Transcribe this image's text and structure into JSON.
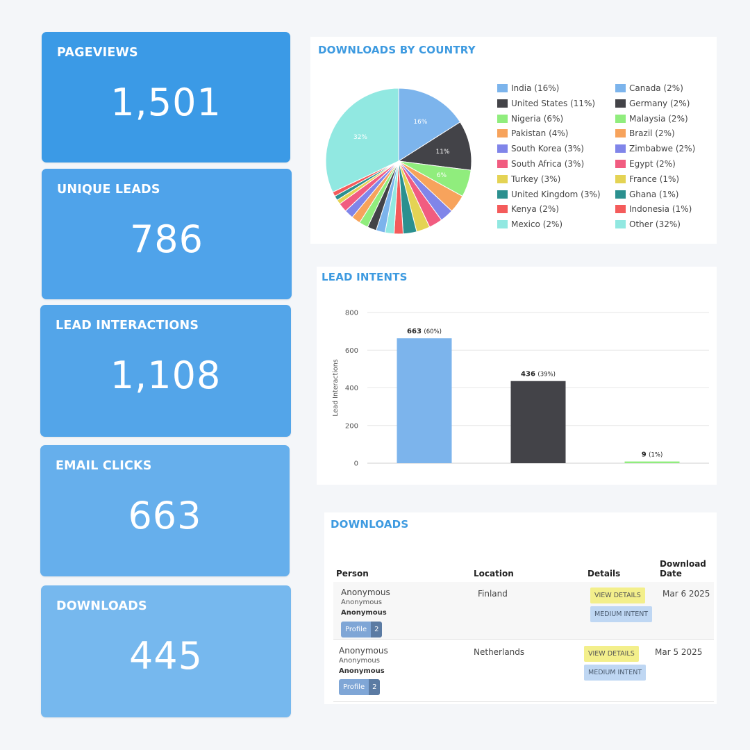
{
  "stats": [
    {
      "title": "PAGEVIEWS",
      "value": "1,501",
      "color": "#3b9ae6"
    },
    {
      "title": "UNIQUE LEADS",
      "value": "786",
      "color": "#4fa3ea"
    },
    {
      "title": "LEAD INTERACTIONS",
      "value": "1,108",
      "color": "#53a5e9"
    },
    {
      "title": "EMAIL CLICKS",
      "value": "663",
      "color": "#66afec"
    },
    {
      "title": "DOWNLOADS",
      "value": "445",
      "color": "#76b8ee"
    }
  ],
  "country_panel": {
    "title": "DOWNLOADS BY COUNTRY"
  },
  "chart_data": [
    {
      "type": "pie",
      "slices": [
        {
          "label": "India (16%)",
          "value": 16,
          "color": "#7cb4ec",
          "slice_label": "16%"
        },
        {
          "label": "United States (11%)",
          "value": 11,
          "color": "#434348",
          "slice_label": "11%"
        },
        {
          "label": "Nigeria (6%)",
          "value": 6,
          "color": "#90ed7d",
          "slice_label": "6%"
        },
        {
          "label": "Pakistan (4%)",
          "value": 4,
          "color": "#f7a35c",
          "slice_label": ""
        },
        {
          "label": "South Korea (3%)",
          "value": 3,
          "color": "#8085e9",
          "slice_label": ""
        },
        {
          "label": "South Africa (3%)",
          "value": 3,
          "color": "#f15c80",
          "slice_label": ""
        },
        {
          "label": "Turkey (3%)",
          "value": 3,
          "color": "#e4d354",
          "slice_label": ""
        },
        {
          "label": "United Kingdom (3%)",
          "value": 3,
          "color": "#2b908f",
          "slice_label": ""
        },
        {
          "label": "Kenya (2%)",
          "value": 2,
          "color": "#f45b5b",
          "slice_label": ""
        },
        {
          "label": "Mexico (2%)",
          "value": 2,
          "color": "#91e8e1",
          "slice_label": ""
        },
        {
          "label": "Canada (2%)",
          "value": 2,
          "color": "#7cb4ec",
          "slice_label": ""
        },
        {
          "label": "Germany (2%)",
          "value": 2,
          "color": "#434348",
          "slice_label": ""
        },
        {
          "label": "Malaysia (2%)",
          "value": 2,
          "color": "#90ed7d",
          "slice_label": ""
        },
        {
          "label": "Brazil (2%)",
          "value": 2,
          "color": "#f7a35c",
          "slice_label": ""
        },
        {
          "label": "Zimbabwe (2%)",
          "value": 2,
          "color": "#8085e9",
          "slice_label": ""
        },
        {
          "label": "Egypt (2%)",
          "value": 2,
          "color": "#f15c80",
          "slice_label": ""
        },
        {
          "label": "France (1%)",
          "value": 1,
          "color": "#e4d354",
          "slice_label": ""
        },
        {
          "label": "Ghana (1%)",
          "value": 1,
          "color": "#2b908f",
          "slice_label": ""
        },
        {
          "label": "Indonesia (1%)",
          "value": 1,
          "color": "#f45b5b",
          "slice_label": ""
        },
        {
          "label": "Other (32%)",
          "value": 32,
          "color": "#91e8e1",
          "slice_label": "32%"
        }
      ]
    },
    {
      "type": "bar",
      "title": "LEAD INTENTS",
      "ylabel": "Lead Interactions",
      "ylim": [
        0,
        800
      ],
      "yticks": [
        0,
        200,
        400,
        600,
        800
      ],
      "grid": true,
      "bars": [
        {
          "value": 663,
          "count_label": "663",
          "pct_label": "(60%)",
          "color": "#7cb4ec"
        },
        {
          "value": 436,
          "count_label": "436",
          "pct_label": "(39%)",
          "color": "#434348"
        },
        {
          "value": 9,
          "count_label": "9",
          "pct_label": "(1%)",
          "color": "#90ed7d"
        }
      ]
    }
  ],
  "downloads_table": {
    "title": "DOWNLOADS",
    "headers": {
      "person": "Person",
      "location": "Location",
      "details": "Details",
      "date_line1": "Download",
      "date_line2": "Date"
    },
    "rows": [
      {
        "person_name": "Anonymous",
        "person_sub": "Anonymous",
        "person_company": "Anonymous",
        "profile_label": "Profile",
        "profile_count": "2",
        "location": "Finland",
        "view_details": "VIEW DETAILS",
        "intent": "MEDIUM INTENT",
        "date": "Mar 6 2025"
      },
      {
        "person_name": "Anonymous",
        "person_sub": "Anonymous",
        "person_company": "Anonymous",
        "profile_label": "Profile",
        "profile_count": "2",
        "location": "Netherlands",
        "view_details": "VIEW DETAILS",
        "intent": "MEDIUM INTENT",
        "date": "Mar 5 2025"
      }
    ]
  }
}
